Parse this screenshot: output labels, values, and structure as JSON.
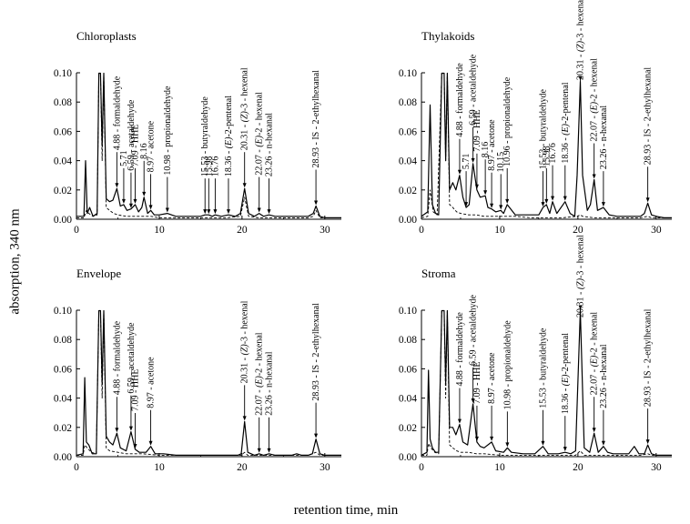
{
  "figure": {
    "ylabel": "absorption, 340 nm",
    "xlabel": "retention time, min"
  },
  "chart_data": [
    {
      "type": "line",
      "title": "Chloroplasts",
      "xlim": [
        0,
        32
      ],
      "ylim": [
        0,
        0.1
      ],
      "xticks": [
        "0",
        "10",
        "20",
        "30"
      ],
      "yticks": [
        "0.00",
        "0.02",
        "0.04",
        "0.06",
        "0.08",
        "0.10"
      ],
      "series": [
        {
          "style": "solid",
          "x": [
            0,
            0.9,
            1.1,
            1.3,
            1.6,
            2.0,
            2.5,
            2.7,
            2.9,
            3.1,
            3.3,
            3.6,
            4.0,
            4.4,
            4.88,
            5.3,
            5.71,
            6.1,
            6.59,
            7.09,
            7.5,
            7.9,
            8.16,
            8.6,
            8.97,
            9.4,
            10.0,
            10.98,
            12,
            13,
            14,
            15,
            15.53,
            15.98,
            16.4,
            16.76,
            17.5,
            18.36,
            19.2,
            19.8,
            20.31,
            20.8,
            21.5,
            22.07,
            22.6,
            23.26,
            24,
            25,
            26,
            27,
            28,
            28.6,
            28.93,
            29.4,
            30,
            31,
            32
          ],
          "y": [
            0.002,
            0.002,
            0.04,
            0.004,
            0.008,
            0.002,
            0.004,
            0.1,
            0.1,
            0.05,
            0.1,
            0.014,
            0.012,
            0.013,
            0.021,
            0.009,
            0.01,
            0.006,
            0.007,
            0.01,
            0.005,
            0.008,
            0.015,
            0.004,
            0.006,
            0.003,
            0.003,
            0.004,
            0.002,
            0.002,
            0.002,
            0.002,
            0.003,
            0.003,
            0.002,
            0.003,
            0.002,
            0.003,
            0.002,
            0.004,
            0.021,
            0.004,
            0.002,
            0.004,
            0.002,
            0.003,
            0.002,
            0.002,
            0.002,
            0.002,
            0.002,
            0.004,
            0.009,
            0.002,
            0.001,
            0.001,
            0.001
          ]
        },
        {
          "style": "dashed",
          "x": [
            0,
            0.9,
            1.2,
            1.5,
            2.0,
            2.5,
            2.7,
            2.9,
            3.1,
            3.3,
            3.6,
            4.0,
            4.5,
            5.0,
            6.0,
            7.0,
            8.0,
            9.0,
            10,
            12,
            14,
            16,
            18,
            19.8,
            20.31,
            20.8,
            22,
            24,
            26,
            28,
            28.6,
            28.93,
            29.4,
            30,
            32
          ],
          "y": [
            0.001,
            0.001,
            0.006,
            0.004,
            0.002,
            0.003,
            0.1,
            0.1,
            0.04,
            0.1,
            0.008,
            0.006,
            0.004,
            0.003,
            0.002,
            0.002,
            0.002,
            0.002,
            0.001,
            0.001,
            0.001,
            0.001,
            0.001,
            0.002,
            0.015,
            0.002,
            0.001,
            0.001,
            0.001,
            0.001,
            0.002,
            0.006,
            0.001,
            0.001,
            0.001
          ]
        }
      ],
      "annotations": [
        {
          "x": 4.88,
          "label": "4.88 - formaldehyde"
        },
        {
          "x": 5.71,
          "label": "5.71"
        },
        {
          "x": 6.59,
          "label": "6.59 - acetaldehyde"
        },
        {
          "x": 7.09,
          "label": "7.09 - HHE"
        },
        {
          "x": 8.16,
          "label": "8.16"
        },
        {
          "x": 8.97,
          "label": "8.97 - acetone"
        },
        {
          "x": 10.98,
          "label": "10.98 - propionaldehyde"
        },
        {
          "x": 15.53,
          "label": "15.53 - butyraldehyde"
        },
        {
          "x": 15.98,
          "label": "15.98"
        },
        {
          "x": 16.76,
          "label": "16.76"
        },
        {
          "x": 18.36,
          "label": "18.36 - (E)-2-pentenal"
        },
        {
          "x": 20.31,
          "label": "20.31 - (Z)-3 - hexenal"
        },
        {
          "x": 22.07,
          "label": "22.07 - (E)-2 - hexenal"
        },
        {
          "x": 23.26,
          "label": "23.26 - n-hexanal"
        },
        {
          "x": 28.93,
          "label": "28.93 - IS - 2-ethylhexanal"
        }
      ]
    },
    {
      "type": "line",
      "title": "Thylakoids",
      "xlim": [
        0,
        32
      ],
      "ylim": [
        0,
        0.1
      ],
      "xticks": [
        "0",
        "10",
        "20",
        "30"
      ],
      "yticks": [
        "0.00",
        "0.02",
        "0.04",
        "0.06",
        "0.08",
        "0.10"
      ],
      "series": [
        {
          "style": "solid",
          "x": [
            0,
            0.8,
            1.1,
            1.4,
            1.8,
            2.2,
            2.6,
            2.9,
            3.1,
            3.3,
            3.6,
            4.0,
            4.4,
            4.88,
            5.3,
            5.71,
            6.1,
            6.59,
            7.09,
            7.5,
            8.16,
            8.5,
            8.97,
            9.5,
            10.15,
            10.5,
            10.96,
            12,
            13,
            14,
            15,
            15.53,
            15.98,
            16.4,
            16.76,
            17.3,
            18.36,
            19.0,
            19.6,
            19.9,
            20.31,
            20.6,
            21.2,
            21.6,
            22.07,
            22.5,
            23.26,
            24,
            25,
            26,
            27,
            28,
            28.5,
            28.93,
            29.4,
            30,
            31,
            32
          ],
          "y": [
            0.002,
            0.005,
            0.078,
            0.01,
            0.004,
            0.003,
            0.1,
            0.1,
            0.04,
            0.1,
            0.02,
            0.025,
            0.02,
            0.03,
            0.015,
            0.008,
            0.01,
            0.038,
            0.02,
            0.015,
            0.016,
            0.008,
            0.007,
            0.005,
            0.006,
            0.004,
            0.01,
            0.003,
            0.003,
            0.003,
            0.003,
            0.008,
            0.01,
            0.004,
            0.012,
            0.004,
            0.012,
            0.004,
            0.002,
            0.03,
            0.094,
            0.03,
            0.006,
            0.01,
            0.027,
            0.006,
            0.008,
            0.003,
            0.002,
            0.002,
            0.002,
            0.002,
            0.004,
            0.011,
            0.003,
            0.002,
            0.001,
            0.001
          ]
        },
        {
          "style": "dashed",
          "x": [
            0,
            0.8,
            1.1,
            1.5,
            2.0,
            2.6,
            2.9,
            3.1,
            3.3,
            3.6,
            4.0,
            4.5,
            5,
            6,
            7,
            8,
            9,
            10,
            12,
            14,
            16,
            18,
            19.9,
            20.31,
            20.6,
            22,
            24,
            26,
            28,
            28.93,
            29.4,
            30,
            32
          ],
          "y": [
            0.001,
            0.002,
            0.02,
            0.005,
            0.003,
            0.1,
            0.1,
            0.04,
            0.1,
            0.01,
            0.008,
            0.005,
            0.004,
            0.003,
            0.003,
            0.002,
            0.002,
            0.002,
            0.002,
            0.001,
            0.001,
            0.001,
            0.002,
            0.003,
            0.002,
            0.001,
            0.001,
            0.001,
            0.001,
            0.002,
            0.001,
            0.001,
            0.001
          ]
        }
      ],
      "annotations": [
        {
          "x": 4.88,
          "label": "4.88 - formaldehyde"
        },
        {
          "x": 5.71,
          "label": "5.71"
        },
        {
          "x": 6.59,
          "label": "6.59 - acetaldehyde"
        },
        {
          "x": 7.09,
          "label": "7.09 - HHE"
        },
        {
          "x": 8.16,
          "label": "8.16"
        },
        {
          "x": 8.97,
          "label": "8.97 - acetone"
        },
        {
          "x": 10.15,
          "label": "10.15"
        },
        {
          "x": 10.96,
          "label": "10.96 - propionaldehyde"
        },
        {
          "x": 15.53,
          "label": "15.53 - butyraldehyde"
        },
        {
          "x": 15.98,
          "label": "15.98"
        },
        {
          "x": 16.76,
          "label": "16.76"
        },
        {
          "x": 18.36,
          "label": "18.36 - (E)-2-pentenal"
        },
        {
          "x": 20.31,
          "label": "20.31 - (Z)-3 - hexenal"
        },
        {
          "x": 22.07,
          "label": "22.07 - (E)-2 - hexenal"
        },
        {
          "x": 23.26,
          "label": "23.26 - n-hexanal"
        },
        {
          "x": 28.93,
          "label": "28.93 - IS - 2-ethylhexanal"
        }
      ]
    },
    {
      "type": "line",
      "title": "Envelope",
      "xlim": [
        0,
        32
      ],
      "ylim": [
        0,
        0.1
      ],
      "xticks": [
        "0",
        "10",
        "20",
        "30"
      ],
      "yticks": [
        "0.00",
        "0.02",
        "0.04",
        "0.06",
        "0.08",
        "0.10"
      ],
      "series": [
        {
          "style": "solid",
          "x": [
            0,
            0.8,
            1.0,
            1.2,
            1.5,
            1.9,
            2.4,
            2.7,
            2.9,
            3.1,
            3.3,
            3.6,
            4.0,
            4.4,
            4.88,
            5.3,
            6.0,
            6.59,
            7.09,
            7.6,
            8.4,
            8.97,
            9.5,
            10.5,
            12,
            14,
            16,
            18,
            19.5,
            19.9,
            20.31,
            20.7,
            21.5,
            22.07,
            22.6,
            23.26,
            24,
            25,
            26,
            26.6,
            27.2,
            28,
            28.5,
            28.93,
            29.4,
            30,
            31,
            32
          ],
          "y": [
            0.001,
            0.002,
            0.054,
            0.01,
            0.008,
            0.002,
            0.002,
            0.1,
            0.1,
            0.05,
            0.1,
            0.014,
            0.01,
            0.008,
            0.016,
            0.006,
            0.004,
            0.017,
            0.005,
            0.003,
            0.003,
            0.007,
            0.002,
            0.002,
            0.001,
            0.001,
            0.001,
            0.001,
            0.001,
            0.002,
            0.024,
            0.003,
            0.001,
            0.002,
            0.001,
            0.002,
            0.001,
            0.001,
            0.001,
            0.002,
            0.001,
            0.001,
            0.002,
            0.012,
            0.002,
            0.001,
            0.001,
            0.001
          ]
        },
        {
          "style": "dashed",
          "x": [
            0,
            0.8,
            1.0,
            1.3,
            1.8,
            2.4,
            2.7,
            2.9,
            3.1,
            3.3,
            3.6,
            4.0,
            5,
            6,
            8,
            10,
            12,
            14,
            16,
            18,
            19.9,
            20.31,
            20.7,
            22,
            24,
            26,
            28,
            28.93,
            29.4,
            30,
            32
          ],
          "y": [
            0.001,
            0.001,
            0.008,
            0.006,
            0.003,
            0.002,
            0.1,
            0.1,
            0.04,
            0.1,
            0.006,
            0.004,
            0.003,
            0.002,
            0.002,
            0.001,
            0.001,
            0.001,
            0.001,
            0.001,
            0.001,
            0.003,
            0.001,
            0.001,
            0.001,
            0.001,
            0.001,
            0.003,
            0.001,
            0.001,
            0.001
          ]
        }
      ],
      "annotations": [
        {
          "x": 4.88,
          "label": "4.88 - formaldehyde"
        },
        {
          "x": 6.59,
          "label": "6.59 - acetaldehyde"
        },
        {
          "x": 7.09,
          "label": "7.09 - HHE"
        },
        {
          "x": 8.97,
          "label": "8.97 - acetone"
        },
        {
          "x": 20.31,
          "label": "20.31 - (Z)-3 - hexenal"
        },
        {
          "x": 22.07,
          "label": "22.07 - (E)-2 - hexenal"
        },
        {
          "x": 23.26,
          "label": "23.26 - n-hexanal"
        },
        {
          "x": 28.93,
          "label": "28.93 - IS - 2-ethylhexanal"
        }
      ]
    },
    {
      "type": "line",
      "title": "Stroma",
      "xlim": [
        0,
        32
      ],
      "ylim": [
        0,
        0.1
      ],
      "xticks": [
        "0",
        "10",
        "20",
        "30"
      ],
      "yticks": [
        "0.00",
        "0.02",
        "0.04",
        "0.06",
        "0.08",
        "0.10"
      ],
      "series": [
        {
          "style": "solid",
          "x": [
            0,
            0.7,
            0.9,
            1.1,
            1.4,
            1.8,
            2.2,
            2.6,
            2.9,
            3.1,
            3.3,
            3.6,
            4.0,
            4.4,
            4.88,
            5.3,
            5.9,
            6.59,
            7.09,
            7.5,
            8.0,
            8.97,
            9.5,
            10.5,
            10.98,
            11.5,
            13,
            14.5,
            15.53,
            16.2,
            17.5,
            18.36,
            19.1,
            19.7,
            20.31,
            20.8,
            21.5,
            22.07,
            22.6,
            23.26,
            23.8,
            24.5,
            25.5,
            26.5,
            27.2,
            27.8,
            28.5,
            28.93,
            29.4,
            30,
            31,
            32
          ],
          "y": [
            0.001,
            0.003,
            0.059,
            0.012,
            0.006,
            0.003,
            0.003,
            0.1,
            0.1,
            0.05,
            0.1,
            0.02,
            0.02,
            0.015,
            0.022,
            0.01,
            0.008,
            0.036,
            0.01,
            0.007,
            0.006,
            0.01,
            0.004,
            0.003,
            0.006,
            0.003,
            0.002,
            0.002,
            0.007,
            0.002,
            0.002,
            0.003,
            0.002,
            0.004,
            0.1,
            0.006,
            0.003,
            0.016,
            0.003,
            0.007,
            0.003,
            0.002,
            0.002,
            0.002,
            0.007,
            0.002,
            0.002,
            0.008,
            0.002,
            0.001,
            0.001,
            0.001
          ]
        },
        {
          "style": "dashed",
          "x": [
            0,
            0.7,
            0.9,
            1.2,
            1.7,
            2.2,
            2.6,
            2.9,
            3.1,
            3.3,
            3.6,
            4.0,
            4.5,
            5,
            6,
            7,
            8,
            10,
            12,
            14,
            16,
            18,
            19.7,
            20.31,
            20.8,
            22,
            24,
            26,
            28,
            28.93,
            29.4,
            30,
            32
          ],
          "y": [
            0.001,
            0.001,
            0.009,
            0.006,
            0.003,
            0.002,
            0.1,
            0.1,
            0.04,
            0.1,
            0.008,
            0.006,
            0.004,
            0.003,
            0.003,
            0.002,
            0.002,
            0.001,
            0.001,
            0.001,
            0.001,
            0.001,
            0.001,
            0.004,
            0.001,
            0.001,
            0.001,
            0.001,
            0.001,
            0.002,
            0.001,
            0.001,
            0.001
          ]
        }
      ],
      "annotations": [
        {
          "x": 4.88,
          "label": "4.88 - formaldehyde"
        },
        {
          "x": 6.59,
          "label": "6.59 - acetaldehyde"
        },
        {
          "x": 7.09,
          "label": "7.09 - HHE"
        },
        {
          "x": 8.97,
          "label": "8.97 - acetone"
        },
        {
          "x": 10.98,
          "label": "10.98 - propionaldehyde"
        },
        {
          "x": 15.53,
          "label": "15.53 - butyraldehyde"
        },
        {
          "x": 18.36,
          "label": "18.36 - (E)-2-pentenal"
        },
        {
          "x": 20.31,
          "label": "20.31 - (Z)-3 - hexenal"
        },
        {
          "x": 22.07,
          "label": "22.07 - (E)-2 - hexenal"
        },
        {
          "x": 23.26,
          "label": "23.26 - n-hexanal"
        },
        {
          "x": 28.93,
          "label": "28.93 - IS - 2-ethylhexanal"
        }
      ]
    }
  ]
}
